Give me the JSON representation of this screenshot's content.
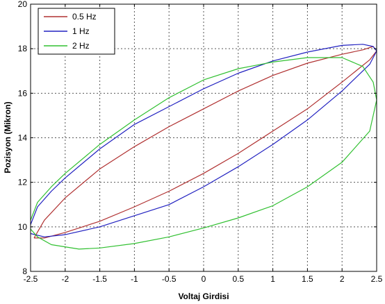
{
  "chart_data": {
    "type": "line",
    "title": "",
    "xlabel": "Voltaj Girdisi",
    "ylabel": "Pozisyon (Mikron)",
    "xlim": [
      -2.5,
      2.5
    ],
    "ylim": [
      8,
      20
    ],
    "xticks": [
      -2.5,
      -2,
      -1.5,
      -1,
      -0.5,
      0,
      0.5,
      1,
      1.5,
      2,
      2.5
    ],
    "xtick_labels": [
      "-2.5",
      "-2",
      "-1.5",
      "-1",
      "-0.5",
      "0",
      "0.5",
      "1",
      "1.5",
      "2",
      "2.5"
    ],
    "yticks": [
      8,
      10,
      12,
      14,
      16,
      18,
      20
    ],
    "ytick_labels": [
      "8",
      "10",
      "12",
      "14",
      "16",
      "18",
      "20"
    ],
    "grid": true,
    "legend_position": "top-left",
    "series": [
      {
        "name": "0.5 Hz",
        "color": "#b03030",
        "points": [
          [
            -2.45,
            9.5
          ],
          [
            -2.3,
            10.3
          ],
          [
            -2.0,
            11.3
          ],
          [
            -1.5,
            12.6
          ],
          [
            -1.0,
            13.6
          ],
          [
            -0.5,
            14.5
          ],
          [
            0.0,
            15.3
          ],
          [
            0.5,
            16.1
          ],
          [
            1.0,
            16.8
          ],
          [
            1.5,
            17.35
          ],
          [
            2.0,
            17.75
          ],
          [
            2.3,
            17.95
          ],
          [
            2.45,
            18.1
          ],
          [
            2.5,
            17.9
          ],
          [
            2.4,
            17.5
          ],
          [
            2.0,
            16.5
          ],
          [
            1.5,
            15.3
          ],
          [
            1.0,
            14.3
          ],
          [
            0.5,
            13.3
          ],
          [
            0.0,
            12.4
          ],
          [
            -0.5,
            11.6
          ],
          [
            -1.0,
            10.9
          ],
          [
            -1.5,
            10.25
          ],
          [
            -2.0,
            9.75
          ],
          [
            -2.3,
            9.5
          ],
          [
            -2.45,
            9.5
          ]
        ]
      },
      {
        "name": "1 Hz",
        "color": "#2020c0",
        "points": [
          [
            -2.5,
            10.1
          ],
          [
            -2.4,
            10.9
          ],
          [
            -2.2,
            11.6
          ],
          [
            -2.0,
            12.2
          ],
          [
            -1.5,
            13.5
          ],
          [
            -1.0,
            14.6
          ],
          [
            -0.5,
            15.4
          ],
          [
            0.0,
            16.2
          ],
          [
            0.5,
            16.9
          ],
          [
            1.0,
            17.45
          ],
          [
            1.5,
            17.85
          ],
          [
            2.0,
            18.15
          ],
          [
            2.3,
            18.2
          ],
          [
            2.45,
            18.1
          ],
          [
            2.5,
            17.9
          ],
          [
            2.4,
            17.3
          ],
          [
            2.0,
            16.1
          ],
          [
            1.5,
            14.8
          ],
          [
            1.0,
            13.7
          ],
          [
            0.5,
            12.7
          ],
          [
            0.0,
            11.8
          ],
          [
            -0.5,
            11.0
          ],
          [
            -1.0,
            10.5
          ],
          [
            -1.5,
            10.0
          ],
          [
            -2.0,
            9.65
          ],
          [
            -2.3,
            9.55
          ],
          [
            -2.5,
            9.7
          ]
        ]
      },
      {
        "name": "2 Hz",
        "color": "#30c030",
        "points": [
          [
            -2.5,
            10.3
          ],
          [
            -2.4,
            11.1
          ],
          [
            -2.2,
            11.8
          ],
          [
            -2.0,
            12.4
          ],
          [
            -1.5,
            13.7
          ],
          [
            -1.0,
            14.8
          ],
          [
            -0.5,
            15.8
          ],
          [
            0.0,
            16.6
          ],
          [
            0.5,
            17.1
          ],
          [
            1.0,
            17.4
          ],
          [
            1.5,
            17.6
          ],
          [
            2.0,
            17.6
          ],
          [
            2.3,
            17.2
          ],
          [
            2.45,
            16.5
          ],
          [
            2.5,
            15.7
          ],
          [
            2.4,
            14.3
          ],
          [
            2.0,
            12.9
          ],
          [
            1.5,
            11.8
          ],
          [
            1.0,
            10.95
          ],
          [
            0.5,
            10.4
          ],
          [
            0.0,
            9.95
          ],
          [
            -0.5,
            9.55
          ],
          [
            -1.0,
            9.25
          ],
          [
            -1.5,
            9.05
          ],
          [
            -1.8,
            9.0
          ],
          [
            -2.2,
            9.2
          ],
          [
            -2.4,
            9.55
          ],
          [
            -2.5,
            9.9
          ]
        ]
      }
    ]
  }
}
